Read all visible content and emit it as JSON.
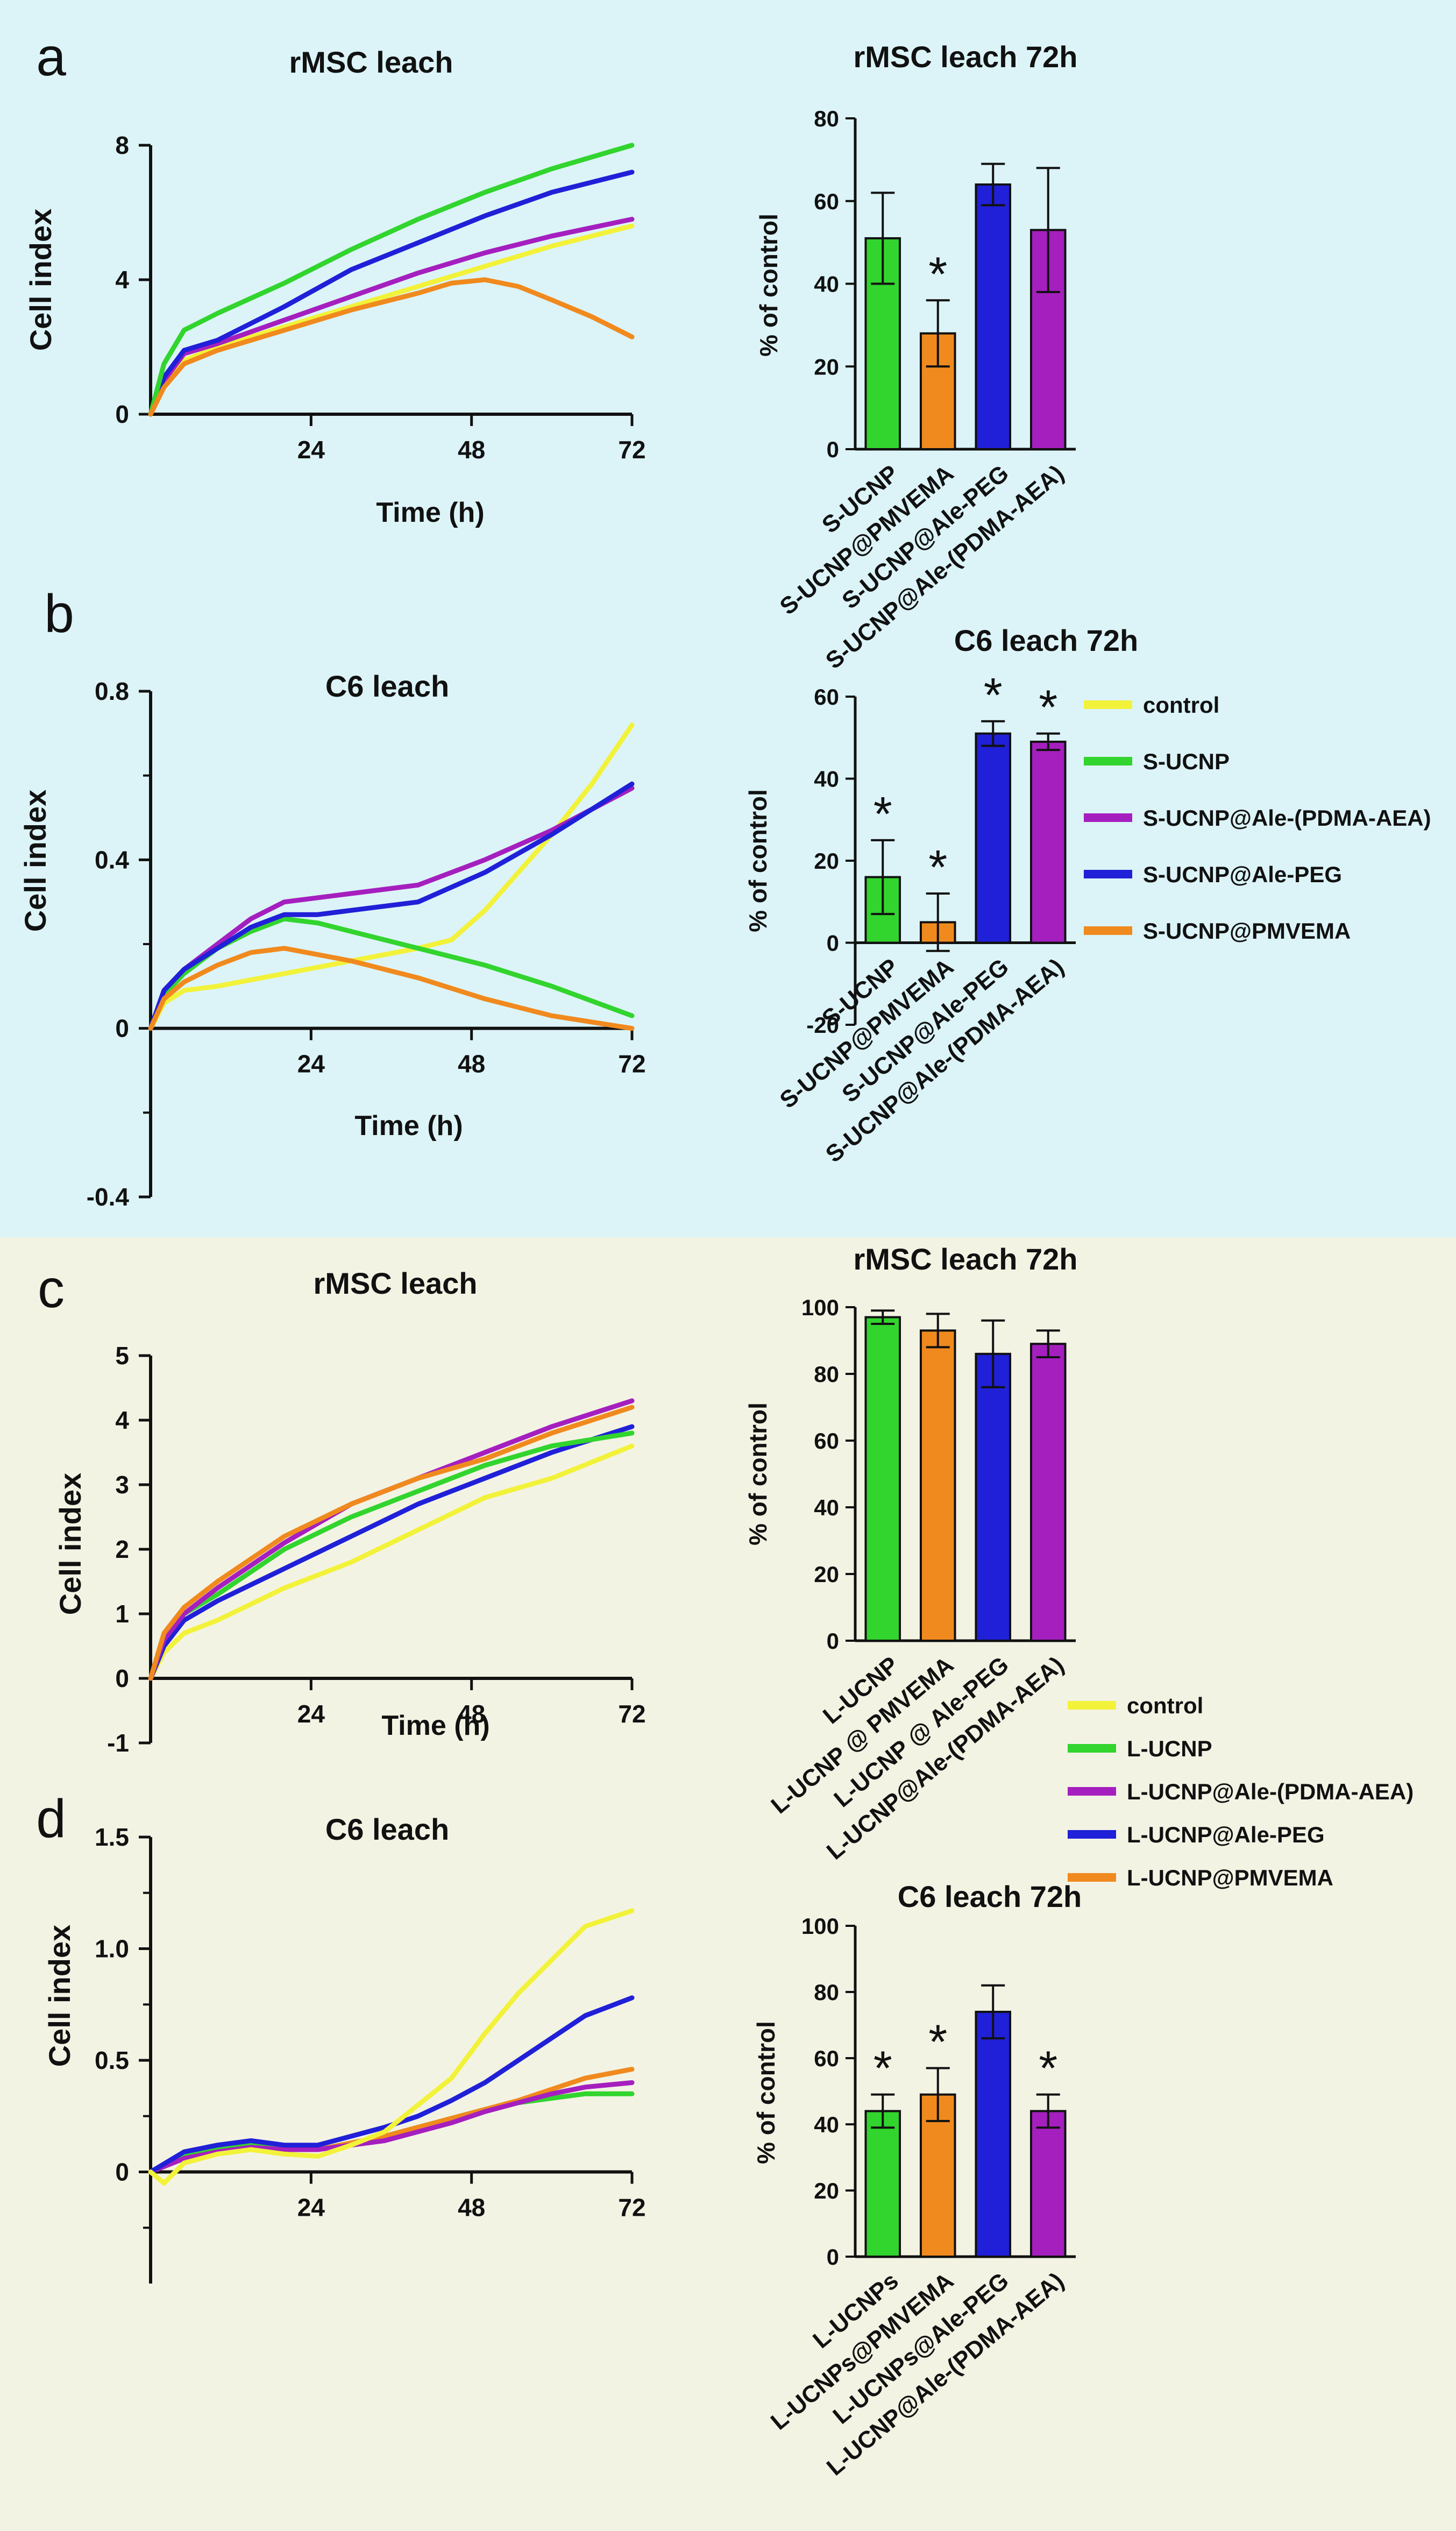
{
  "colors": {
    "bg_top": "#dcf4f8",
    "bg_bottom": "#f3f3e4",
    "control": "#f2f23a",
    "ucnp": "#32d42e",
    "pdma": "#a51fbf",
    "peg": "#2020d8",
    "pmvema": "#f08a1e"
  },
  "chart_data": [
    {
      "id": "a_line",
      "type": "line",
      "panel_letter": "a",
      "title": "rMSC leach",
      "xlabel": "Time (h)",
      "ylabel": "Cell index",
      "xlim": [
        0,
        72
      ],
      "ylim": [
        0,
        8
      ],
      "xticks": [
        "24",
        "48",
        "72"
      ],
      "yticks": [
        "0",
        "4",
        "8"
      ],
      "series": [
        {
          "name": "control",
          "color": "#f2f23a",
          "x": [
            0,
            2,
            5,
            10,
            20,
            30,
            40,
            50,
            60,
            72
          ],
          "y": [
            0,
            0.9,
            1.6,
            2.0,
            2.6,
            3.2,
            3.8,
            4.4,
            5.0,
            5.6
          ]
        },
        {
          "name": "S-UCNP@Ale-(PDMA-AEA)",
          "color": "#a51fbf",
          "x": [
            0,
            2,
            5,
            10,
            20,
            30,
            40,
            50,
            60,
            72
          ],
          "y": [
            0,
            1.0,
            1.8,
            2.1,
            2.8,
            3.5,
            4.2,
            4.8,
            5.3,
            5.8
          ]
        },
        {
          "name": "S-UCNP@Ale-PEG",
          "color": "#2020d8",
          "x": [
            0,
            2,
            5,
            10,
            20,
            30,
            40,
            50,
            60,
            72
          ],
          "y": [
            0,
            1.1,
            1.9,
            2.2,
            3.2,
            4.3,
            5.1,
            5.9,
            6.6,
            7.2
          ]
        },
        {
          "name": "S-UCNP",
          "color": "#32d42e",
          "x": [
            0,
            2,
            5,
            10,
            20,
            30,
            40,
            50,
            60,
            72
          ],
          "y": [
            0,
            1.5,
            2.5,
            3.0,
            3.9,
            4.9,
            5.8,
            6.6,
            7.3,
            8.0
          ]
        },
        {
          "name": "S-UCNP@PMVEMA",
          "color": "#f08a1e",
          "x": [
            0,
            2,
            5,
            10,
            20,
            30,
            40,
            45,
            50,
            55,
            60,
            66,
            72
          ],
          "y": [
            0,
            0.8,
            1.5,
            1.9,
            2.5,
            3.1,
            3.6,
            3.9,
            4.0,
            3.8,
            3.4,
            2.9,
            2.3
          ]
        }
      ]
    },
    {
      "id": "a_bar",
      "type": "bar",
      "title": "rMSC leach  72h",
      "ylabel": "% of control",
      "ylim": [
        0,
        80
      ],
      "yticks": [
        "0",
        "20",
        "40",
        "60",
        "80"
      ],
      "categories": [
        "S-UCNP",
        "S-UCNP@PMVEMA",
        "S-UCNP@Ale-PEG",
        "S-UCNP@Ale-(PDMA-AEA)"
      ],
      "colors": [
        "#32d42e",
        "#f08a1e",
        "#2020d8",
        "#a51fbf"
      ],
      "values": [
        51,
        28,
        64,
        53
      ],
      "errors": [
        11,
        8,
        5,
        15
      ],
      "significance": [
        "",
        "*",
        "",
        ""
      ]
    },
    {
      "id": "b_line",
      "type": "line",
      "panel_letter": "b",
      "title": "C6 leach",
      "xlabel": "Time (h)",
      "ylabel": "Cell index",
      "xlim": [
        0,
        72
      ],
      "ylim": [
        -0.4,
        0.8
      ],
      "xticks": [
        "24",
        "48",
        "72"
      ],
      "yticks": [
        "-0.4",
        "0",
        "0.4",
        "0.8"
      ],
      "series": [
        {
          "name": "control",
          "color": "#f2f23a",
          "x": [
            0,
            2,
            5,
            10,
            20,
            30,
            40,
            45,
            50,
            55,
            60,
            66,
            72
          ],
          "y": [
            0,
            0.06,
            0.09,
            0.1,
            0.13,
            0.16,
            0.19,
            0.21,
            0.28,
            0.37,
            0.46,
            0.58,
            0.72
          ]
        },
        {
          "name": "S-UCNP",
          "color": "#32d42e",
          "x": [
            0,
            2,
            5,
            10,
            15,
            20,
            25,
            30,
            40,
            50,
            60,
            72
          ],
          "y": [
            0,
            0.08,
            0.13,
            0.19,
            0.23,
            0.26,
            0.25,
            0.23,
            0.19,
            0.15,
            0.1,
            0.03
          ]
        },
        {
          "name": "S-UCNP@Ale-(PDMA-AEA)",
          "color": "#a51fbf",
          "x": [
            0,
            2,
            5,
            10,
            15,
            20,
            30,
            40,
            50,
            60,
            72
          ],
          "y": [
            0,
            0.09,
            0.14,
            0.2,
            0.26,
            0.3,
            0.32,
            0.34,
            0.4,
            0.47,
            0.57
          ]
        },
        {
          "name": "S-UCNP@Ale-PEG",
          "color": "#2020d8",
          "x": [
            0,
            2,
            5,
            10,
            15,
            20,
            25,
            30,
            40,
            50,
            60,
            72
          ],
          "y": [
            0,
            0.09,
            0.14,
            0.19,
            0.24,
            0.27,
            0.27,
            0.28,
            0.3,
            0.37,
            0.46,
            0.58
          ]
        },
        {
          "name": "S-UCNP@PMVEMA",
          "color": "#f08a1e",
          "x": [
            0,
            2,
            5,
            10,
            15,
            20,
            30,
            40,
            50,
            60,
            72
          ],
          "y": [
            0,
            0.07,
            0.11,
            0.15,
            0.18,
            0.19,
            0.16,
            0.12,
            0.07,
            0.03,
            0.0
          ]
        }
      ]
    },
    {
      "id": "b_bar",
      "type": "bar",
      "title": "C6 leach 72h",
      "ylabel": "% of control",
      "ylim": [
        -20,
        60
      ],
      "yticks": [
        "-20",
        "0",
        "20",
        "40",
        "60"
      ],
      "categories": [
        "S-UCNP",
        "S-UCNP@PMVEMA",
        "S-UCNP@Ale-PEG",
        "S-UCNP@Ale-(PDMA-AEA)"
      ],
      "colors": [
        "#32d42e",
        "#f08a1e",
        "#2020d8",
        "#a51fbf"
      ],
      "values": [
        16,
        5,
        51,
        49
      ],
      "errors": [
        9,
        7,
        3,
        2
      ],
      "significance": [
        "*",
        "*",
        "*",
        "*"
      ]
    },
    {
      "id": "c_line",
      "type": "line",
      "panel_letter": "c",
      "title": "rMSC leach",
      "xlabel": "Time (h)",
      "ylabel": "Cell index",
      "xlim": [
        0,
        72
      ],
      "ylim": [
        -1,
        5
      ],
      "xticks": [
        "24",
        "48",
        "72"
      ],
      "yticks": [
        "-1",
        "0",
        "1",
        "2",
        "3",
        "4",
        "5"
      ],
      "series": [
        {
          "name": "control",
          "color": "#f2f23a",
          "x": [
            0,
            2,
            5,
            10,
            20,
            30,
            40,
            50,
            60,
            72
          ],
          "y": [
            0,
            0.4,
            0.7,
            0.9,
            1.4,
            1.8,
            2.3,
            2.8,
            3.1,
            3.6
          ]
        },
        {
          "name": "L-UCNP@Ale-PEG",
          "color": "#2020d8",
          "x": [
            0,
            2,
            5,
            10,
            20,
            30,
            40,
            50,
            60,
            72
          ],
          "y": [
            0,
            0.5,
            0.9,
            1.2,
            1.7,
            2.2,
            2.7,
            3.1,
            3.5,
            3.9
          ]
        },
        {
          "name": "L-UCNP",
          "color": "#32d42e",
          "x": [
            0,
            2,
            5,
            10,
            20,
            30,
            40,
            50,
            60,
            72
          ],
          "y": [
            0,
            0.6,
            1.0,
            1.3,
            2.0,
            2.5,
            2.9,
            3.3,
            3.6,
            3.8
          ]
        },
        {
          "name": "L-UCNP@Ale-(PDMA-AEA)",
          "color": "#a51fbf",
          "x": [
            0,
            2,
            5,
            10,
            20,
            30,
            40,
            50,
            60,
            72
          ],
          "y": [
            0,
            0.6,
            1.0,
            1.4,
            2.1,
            2.7,
            3.1,
            3.5,
            3.9,
            4.3
          ]
        },
        {
          "name": "L-UCNP@PMVEMA",
          "color": "#f08a1e",
          "x": [
            0,
            2,
            5,
            10,
            20,
            30,
            40,
            50,
            60,
            72
          ],
          "y": [
            0,
            0.7,
            1.1,
            1.5,
            2.2,
            2.7,
            3.1,
            3.4,
            3.8,
            4.2
          ]
        }
      ]
    },
    {
      "id": "c_bar",
      "type": "bar",
      "title": "rMSC leach 72h",
      "ylabel": "% of control",
      "ylim": [
        0,
        100
      ],
      "yticks": [
        "0",
        "20",
        "40",
        "60",
        "80",
        "100"
      ],
      "categories": [
        "L-UCNP",
        "L-UCNP @ PMVEMA",
        "L-UCNP @ Ale-PEG",
        "L-UCNP@Ale-(PDMA-AEA)"
      ],
      "colors": [
        "#32d42e",
        "#f08a1e",
        "#2020d8",
        "#a51fbf"
      ],
      "values": [
        97,
        93,
        86,
        89
      ],
      "errors": [
        2,
        5,
        10,
        4
      ],
      "significance": [
        "",
        "",
        "",
        ""
      ]
    },
    {
      "id": "d_line",
      "type": "line",
      "panel_letter": "d",
      "title": "C6 leach",
      "xlabel": "",
      "ylabel": "Cell index",
      "xlim": [
        0,
        72
      ],
      "ylim": [
        -0.5,
        1.5
      ],
      "xticks": [
        "24",
        "48",
        "72"
      ],
      "yticks": [
        "0",
        "0.5",
        "1.0",
        "1.5"
      ],
      "series": [
        {
          "name": "L-UCNP",
          "color": "#32d42e",
          "x": [
            0,
            5,
            10,
            15,
            20,
            25,
            30,
            35,
            40,
            45,
            50,
            55,
            60,
            65,
            72
          ],
          "y": [
            0.0,
            0.07,
            0.1,
            0.12,
            0.11,
            0.1,
            0.13,
            0.16,
            0.2,
            0.24,
            0.28,
            0.31,
            0.33,
            0.35,
            0.35
          ]
        },
        {
          "name": "L-UCNP@PMVEMA",
          "color": "#f08a1e",
          "x": [
            0,
            5,
            10,
            15,
            20,
            25,
            30,
            35,
            40,
            45,
            50,
            55,
            60,
            65,
            72
          ],
          "y": [
            0.0,
            0.06,
            0.09,
            0.11,
            0.1,
            0.1,
            0.13,
            0.16,
            0.2,
            0.24,
            0.28,
            0.32,
            0.37,
            0.42,
            0.46
          ]
        },
        {
          "name": "L-UCNP@Ale-(PDMA-AEA)",
          "color": "#a51fbf",
          "x": [
            0,
            5,
            10,
            15,
            20,
            25,
            30,
            35,
            40,
            45,
            50,
            55,
            60,
            65,
            72
          ],
          "y": [
            0.0,
            0.06,
            0.09,
            0.11,
            0.1,
            0.1,
            0.12,
            0.14,
            0.18,
            0.22,
            0.27,
            0.31,
            0.35,
            0.38,
            0.4
          ]
        },
        {
          "name": "L-UCNP@Ale-PEG",
          "color": "#2020d8",
          "x": [
            0,
            5,
            10,
            15,
            20,
            25,
            30,
            35,
            40,
            45,
            50,
            55,
            60,
            65,
            72
          ],
          "y": [
            0.0,
            0.09,
            0.12,
            0.14,
            0.12,
            0.12,
            0.16,
            0.2,
            0.25,
            0.32,
            0.4,
            0.5,
            0.6,
            0.7,
            0.78
          ]
        },
        {
          "name": "control",
          "color": "#f2f23a",
          "x": [
            0,
            2,
            5,
            10,
            15,
            20,
            25,
            30,
            35,
            40,
            45,
            50,
            55,
            60,
            65,
            72
          ],
          "y": [
            0.0,
            -0.05,
            0.04,
            0.08,
            0.1,
            0.08,
            0.07,
            0.12,
            0.18,
            0.3,
            0.42,
            0.62,
            0.8,
            0.95,
            1.1,
            1.17
          ]
        }
      ]
    },
    {
      "id": "d_bar",
      "type": "bar",
      "title": "C6 leach 72h",
      "ylabel": "% of control",
      "ylim": [
        0,
        100
      ],
      "yticks": [
        "0",
        "20",
        "40",
        "60",
        "80",
        "100"
      ],
      "categories": [
        "L-UCNPs",
        "L-UCNPs@PMVEMA",
        "L-UCNPs@Ale-PEG",
        "L-UCNP@Ale-(PDMA-AEA)"
      ],
      "colors": [
        "#32d42e",
        "#f08a1e",
        "#2020d8",
        "#a51fbf"
      ],
      "values": [
        44,
        49,
        74,
        44
      ],
      "errors": [
        5,
        8,
        8,
        5
      ],
      "significance": [
        "*",
        "*",
        "",
        "*"
      ]
    }
  ],
  "legends": {
    "top": [
      {
        "label": "control",
        "color": "#f2f23a"
      },
      {
        "label": "S-UCNP",
        "color": "#32d42e"
      },
      {
        "label": "S-UCNP@Ale-(PDMA-AEA)",
        "color": "#a51fbf"
      },
      {
        "label": "S-UCNP@Ale-PEG",
        "color": "#2020d8"
      },
      {
        "label": "S-UCNP@PMVEMA",
        "color": "#f08a1e"
      }
    ],
    "bottom": [
      {
        "label": "control",
        "color": "#f2f23a"
      },
      {
        "label": "L-UCNP",
        "color": "#32d42e"
      },
      {
        "label": "L-UCNP@Ale-(PDMA-AEA)",
        "color": "#a51fbf"
      },
      {
        "label": "L-UCNP@Ale-PEG",
        "color": "#2020d8"
      },
      {
        "label": "L-UCNP@PMVEMA",
        "color": "#f08a1e"
      }
    ]
  }
}
